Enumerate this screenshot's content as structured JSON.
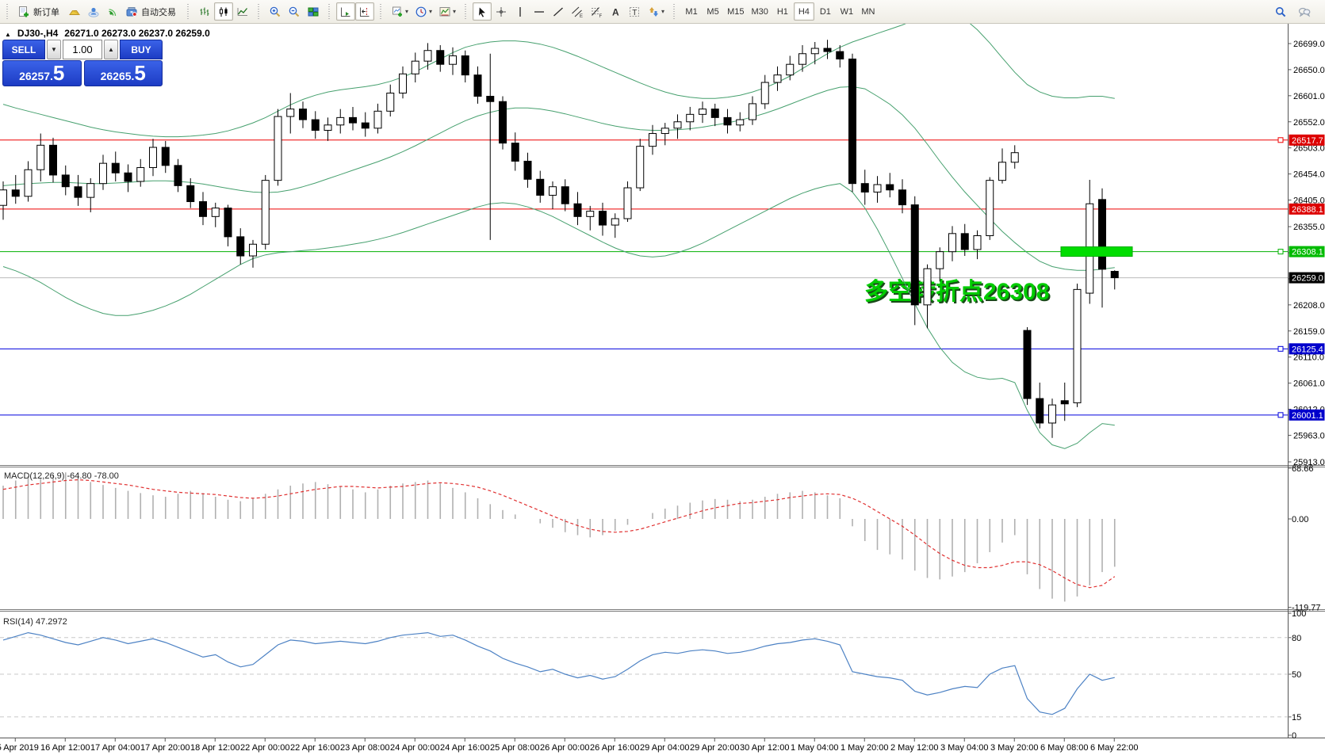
{
  "toolbar": {
    "new_order_label": "新订单",
    "autotrading_label": "自动交易",
    "timeframes": [
      "M1",
      "M5",
      "M15",
      "M30",
      "H1",
      "H4",
      "D1",
      "W1",
      "MN"
    ],
    "active_timeframe": "H4"
  },
  "quote_panel": {
    "sell_label": "SELL",
    "buy_label": "BUY",
    "volume": "1.00",
    "sell_main": "26257.",
    "sell_big": "5",
    "buy_main": "26265.",
    "buy_big": "5"
  },
  "chart": {
    "collapse_icon": "▲",
    "title": "DJ30-,H4",
    "ohlc": "26271.0 26273.0 26237.0 26259.0"
  },
  "chart_data": {
    "type": "candlestick",
    "symbol": "DJ30-",
    "timeframe": "H4",
    "open": 26271.0,
    "high": 26273.0,
    "low": 26237.0,
    "close": 26259.0,
    "price_axis_ticks": [
      "26699.0",
      "26650.0",
      "26601.0",
      "26552.0",
      "26503.0",
      "26454.0",
      "26405.0",
      "26355.0",
      "26306.0",
      "26257.0",
      "26208.0",
      "26159.0",
      "26110.0",
      "26061.0",
      "26012.0",
      "25963.0",
      "25913.0"
    ],
    "price_labels": [
      {
        "text": "26517.7",
        "price": 26517.7,
        "bg": "#dd0000",
        "fg": "#ffffff",
        "line": "#ee0000",
        "handle": true
      },
      {
        "text": "26388.1",
        "price": 26388.1,
        "bg": "#dd0000",
        "fg": "#ffffff",
        "line": "#ee0000",
        "handle": false
      },
      {
        "text": "26308.1",
        "price": 26308.1,
        "bg": "#00bb00",
        "fg": "#ffffff",
        "line": "#00b000",
        "handle": true
      },
      {
        "text": "26259.0",
        "price": 26259.0,
        "bg": "#000000",
        "fg": "#ffffff",
        "line": "#bbbbbb",
        "handle": false
      },
      {
        "text": "26125.4",
        "price": 26125.4,
        "bg": "#0000cc",
        "fg": "#ffffff",
        "line": "#0000dd",
        "handle": true
      },
      {
        "text": "26001.1",
        "price": 26001.1,
        "bg": "#0000cc",
        "fg": "#ffffff",
        "line": "#0000dd",
        "handle": true
      }
    ],
    "annotation": {
      "text": "多空转折点26308",
      "color": "#00cc00",
      "shadow": "#1a4a1a"
    },
    "green_zone": {
      "price": 26308.1,
      "color": "#00dd00"
    },
    "x_labels": [
      "15 Apr 2019",
      "16 Apr 12:00",
      "17 Apr 04:00",
      "17 Apr 20:00",
      "18 Apr 12:00",
      "22 Apr 00:00",
      "22 Apr 16:00",
      "23 Apr 08:00",
      "24 Apr 00:00",
      "24 Apr 16:00",
      "25 Apr 08:00",
      "26 Apr 00:00",
      "26 Apr 16:00",
      "29 Apr 04:00",
      "29 Apr 20:00",
      "30 Apr 12:00",
      "1 May 04:00",
      "1 May 20:00",
      "2 May 12:00",
      "3 May 04:00",
      "3 May 20:00",
      "6 May 08:00",
      "6 May 22:00"
    ],
    "candles": [
      [
        26395,
        26440,
        26368,
        26424
      ],
      [
        26424,
        26452,
        26398,
        26412
      ],
      [
        26412,
        26478,
        26402,
        26462
      ],
      [
        26462,
        26530,
        26440,
        26508
      ],
      [
        26508,
        26522,
        26438,
        26452
      ],
      [
        26452,
        26470,
        26414,
        26430
      ],
      [
        26430,
        26452,
        26394,
        26410
      ],
      [
        26410,
        26446,
        26382,
        26436
      ],
      [
        26436,
        26490,
        26424,
        26474
      ],
      [
        26474,
        26496,
        26440,
        26456
      ],
      [
        26456,
        26472,
        26420,
        26440
      ],
      [
        26440,
        26482,
        26430,
        26466
      ],
      [
        26466,
        26520,
        26450,
        26504
      ],
      [
        26504,
        26516,
        26456,
        26470
      ],
      [
        26470,
        26482,
        26420,
        26432
      ],
      [
        26432,
        26446,
        26390,
        26402
      ],
      [
        26402,
        26420,
        26358,
        26374
      ],
      [
        26374,
        26400,
        26354,
        26390
      ],
      [
        26390,
        26396,
        26318,
        26336
      ],
      [
        26336,
        26352,
        26284,
        26300
      ],
      [
        26300,
        26330,
        26278,
        26322
      ],
      [
        26322,
        26452,
        26312,
        26442
      ],
      [
        26442,
        26576,
        26432,
        26562
      ],
      [
        26562,
        26606,
        26530,
        26576
      ],
      [
        26576,
        26590,
        26540,
        26556
      ],
      [
        26556,
        26572,
        26520,
        26536
      ],
      [
        26536,
        26560,
        26516,
        26546
      ],
      [
        26546,
        26576,
        26530,
        26560
      ],
      [
        26560,
        26580,
        26536,
        26550
      ],
      [
        26550,
        26570,
        26524,
        26540
      ],
      [
        26540,
        26586,
        26530,
        26572
      ],
      [
        26572,
        26622,
        26562,
        26606
      ],
      [
        26606,
        26656,
        26596,
        26642
      ],
      [
        26642,
        26682,
        26626,
        26666
      ],
      [
        26666,
        26700,
        26650,
        26686
      ],
      [
        26686,
        26696,
        26646,
        26660
      ],
      [
        26660,
        26692,
        26640,
        26676
      ],
      [
        26676,
        26686,
        26626,
        26640
      ],
      [
        26640,
        26656,
        26586,
        26600
      ],
      [
        26600,
        26680,
        26330,
        26590
      ],
      [
        26590,
        26600,
        26500,
        26512
      ],
      [
        26512,
        26532,
        26460,
        26478
      ],
      [
        26478,
        26494,
        26428,
        26444
      ],
      [
        26444,
        26460,
        26400,
        26414
      ],
      [
        26414,
        26440,
        26388,
        26430
      ],
      [
        26430,
        26444,
        26384,
        26398
      ],
      [
        26398,
        26420,
        26358,
        26374
      ],
      [
        26374,
        26394,
        26348,
        26384
      ],
      [
        26384,
        26400,
        26338,
        26358
      ],
      [
        26358,
        26380,
        26334,
        26370
      ],
      [
        26370,
        26440,
        26364,
        26428
      ],
      [
        26428,
        26520,
        26422,
        26506
      ],
      [
        26506,
        26546,
        26490,
        26530
      ],
      [
        26530,
        26550,
        26508,
        26540
      ],
      [
        26540,
        26566,
        26520,
        26552
      ],
      [
        26552,
        26580,
        26536,
        26566
      ],
      [
        26566,
        26590,
        26550,
        26576
      ],
      [
        26576,
        26586,
        26544,
        26560
      ],
      [
        26560,
        26576,
        26530,
        26546
      ],
      [
        26546,
        26570,
        26534,
        26556
      ],
      [
        26556,
        26600,
        26546,
        26586
      ],
      [
        26586,
        26640,
        26576,
        26626
      ],
      [
        26626,
        26656,
        26610,
        26640
      ],
      [
        26640,
        26676,
        26630,
        26660
      ],
      [
        26660,
        26696,
        26646,
        26680
      ],
      [
        26680,
        26702,
        26660,
        26690
      ],
      [
        26690,
        26706,
        26670,
        26684
      ],
      [
        26684,
        26696,
        26654,
        26670
      ],
      [
        26670,
        26680,
        26420,
        26436
      ],
      [
        26436,
        26462,
        26396,
        26420
      ],
      [
        26420,
        26450,
        26400,
        26434
      ],
      [
        26434,
        26456,
        26410,
        26424
      ],
      [
        26424,
        26444,
        26380,
        26396
      ],
      [
        26396,
        26412,
        26170,
        26208
      ],
      [
        26208,
        26284,
        26164,
        26276
      ],
      [
        26276,
        26316,
        26252,
        26308
      ],
      [
        26308,
        26356,
        26290,
        26342
      ],
      [
        26342,
        26360,
        26300,
        26312
      ],
      [
        26312,
        26348,
        26294,
        26338
      ],
      [
        26338,
        26448,
        26330,
        26442
      ],
      [
        26442,
        26502,
        26436,
        26476
      ],
      [
        26476,
        26508,
        26464,
        26494
      ],
      [
        26160,
        26166,
        26020,
        26032
      ],
      [
        26032,
        26062,
        25976,
        25986
      ],
      [
        25986,
        26032,
        25958,
        26020
      ],
      [
        26028,
        26062,
        25990,
        26022
      ],
      [
        26024,
        26248,
        26016,
        26237
      ],
      [
        26230,
        26443,
        26210,
        26398
      ],
      [
        26406,
        26427,
        26203,
        26275
      ],
      [
        26271,
        26273,
        26237,
        26259
      ]
    ],
    "bollinger": {
      "color": "#46a06e",
      "upper": [
        26585,
        26578,
        26572,
        26566,
        26560,
        26554,
        26548,
        26542,
        26537,
        26533,
        26530,
        26527,
        26525,
        26524,
        26524,
        26525,
        26527,
        26530,
        26535,
        26542,
        26550,
        26560,
        26572,
        26584,
        26594,
        26602,
        26608,
        26612,
        26615,
        26618,
        26622,
        26628,
        26636,
        26646,
        26658,
        26670,
        26682,
        26692,
        26698,
        26702,
        26704,
        26704,
        26702,
        26698,
        26692,
        26684,
        26675,
        26665,
        26655,
        26645,
        26635,
        26625,
        26616,
        26608,
        26602,
        26598,
        26596,
        26596,
        26598,
        26602,
        26608,
        26616,
        26626,
        26638,
        26652,
        26666,
        26680,
        26692,
        26702,
        26710,
        26718,
        26726,
        26734,
        26744,
        26756,
        26768,
        26760,
        26745,
        26725,
        26700,
        26672,
        26645,
        26622,
        26608,
        26600,
        26597,
        26597,
        26600,
        26600,
        26596
      ],
      "middle": [
        26432,
        26434,
        26436,
        26437,
        26438,
        26438,
        26437,
        26436,
        26436,
        26437,
        26438,
        26440,
        26441,
        26441,
        26440,
        26438,
        26435,
        26431,
        26427,
        26423,
        26420,
        26419,
        26420,
        26424,
        26430,
        26437,
        26445,
        26453,
        26461,
        26469,
        26477,
        26486,
        26496,
        26507,
        26519,
        26531,
        26543,
        26554,
        26563,
        26570,
        26575,
        26578,
        26578,
        26576,
        26572,
        26567,
        26561,
        26555,
        26549,
        26544,
        26540,
        26537,
        26536,
        26536,
        26537,
        26539,
        26542,
        26546,
        26550,
        26555,
        26561,
        26568,
        26576,
        26585,
        26594,
        26603,
        26611,
        26617,
        26618,
        26614,
        26600,
        26585,
        26565,
        26540,
        26510,
        26478,
        26448,
        26420,
        26395,
        26370,
        26346,
        26325,
        26306,
        26290,
        26280,
        26275,
        26273,
        26273,
        26275,
        26278
      ],
      "lower": [
        26280,
        26272,
        26262,
        26250,
        26236,
        26222,
        26210,
        26200,
        26192,
        26188,
        26188,
        26192,
        26198,
        26206,
        26216,
        26228,
        26242,
        26256,
        26270,
        26284,
        26295,
        26302,
        26306,
        26308,
        26310,
        26312,
        26315,
        26318,
        26322,
        26326,
        26331,
        26337,
        26344,
        26352,
        26360,
        26368,
        26376,
        26384,
        26392,
        26398,
        26400,
        26398,
        26392,
        26384,
        26374,
        26362,
        26350,
        26338,
        26326,
        26315,
        26306,
        26300,
        26298,
        26300,
        26306,
        26314,
        26324,
        26336,
        26348,
        26360,
        26372,
        26384,
        26396,
        26408,
        26418,
        26426,
        26432,
        26436,
        26420,
        26390,
        26350,
        26305,
        26258,
        26210,
        26165,
        26128,
        26100,
        26082,
        26072,
        26068,
        26070,
        26062,
        26010,
        25968,
        25945,
        25938,
        25948,
        25968,
        25985,
        25982
      ]
    },
    "macd": {
      "label": "MACD(12,26,9)",
      "value": "-64.80",
      "signal_value": "-78.00",
      "axis": [
        "68.66",
        "0.00",
        "-119.77"
      ],
      "hist_color": "#b0b0b0",
      "signal_color": "#e03030",
      "hist": [
        45,
        52,
        58,
        55,
        60,
        63,
        57,
        50,
        46,
        42,
        38,
        35,
        32,
        30,
        34,
        38,
        35,
        30,
        26,
        24,
        28,
        34,
        40,
        45,
        48,
        50,
        47,
        44,
        40,
        36,
        40,
        45,
        48,
        50,
        52,
        48,
        42,
        36,
        28,
        20,
        12,
        6,
        0,
        -6,
        -12,
        -18,
        -22,
        -25,
        -22,
        -16,
        -8,
        0,
        8,
        14,
        18,
        22,
        25,
        27,
        26,
        24,
        26,
        30,
        34,
        36,
        38,
        36,
        32,
        28,
        -10,
        -30,
        -42,
        -48,
        -55,
        -70,
        -80,
        -82,
        -78,
        -72,
        -60,
        -45,
        -32,
        -22,
        -75,
        -95,
        -108,
        -112,
        -105,
        -90,
        -72,
        -64.8
      ],
      "signal": [
        40,
        43,
        46,
        48,
        50,
        52,
        53,
        52,
        50,
        48,
        46,
        43,
        40,
        38,
        36,
        35,
        34,
        33,
        31,
        29,
        28,
        29,
        31,
        34,
        37,
        40,
        42,
        44,
        44,
        43,
        42,
        43,
        44,
        46,
        48,
        49,
        48,
        46,
        43,
        38,
        32,
        25,
        18,
        11,
        4,
        -3,
        -9,
        -14,
        -17,
        -18,
        -17,
        -14,
        -9,
        -4,
        1,
        6,
        11,
        15,
        18,
        21,
        22,
        24,
        26,
        29,
        31,
        33,
        34,
        33,
        28,
        20,
        10,
        0,
        -10,
        -22,
        -35,
        -47,
        -56,
        -63,
        -66,
        -66,
        -63,
        -58,
        -58,
        -62,
        -70,
        -80,
        -89,
        -93,
        -90,
        -78
      ]
    },
    "rsi": {
      "label": "RSI(14)",
      "value": "47.2972",
      "axis": [
        "100",
        "80",
        "50",
        "15",
        "0"
      ],
      "levels": [
        80,
        50,
        15
      ],
      "line_color": "#4d82c4",
      "values": [
        78,
        81,
        84,
        82,
        79,
        76,
        74,
        77,
        80,
        78,
        75,
        77,
        79,
        76,
        72,
        68,
        64,
        66,
        60,
        56,
        58,
        66,
        74,
        78,
        77,
        75,
        76,
        77,
        76,
        75,
        77,
        80,
        82,
        83,
        84,
        81,
        82,
        78,
        73,
        69,
        63,
        59,
        56,
        52,
        54,
        50,
        47,
        49,
        46,
        48,
        54,
        61,
        66,
        68,
        67,
        69,
        70,
        69,
        67,
        68,
        70,
        73,
        75,
        76,
        78,
        79,
        77,
        74,
        52,
        50,
        48,
        47,
        45,
        36,
        33,
        35,
        38,
        40,
        39,
        50,
        55,
        57,
        30,
        19,
        17,
        22,
        38,
        50,
        45,
        47.3
      ]
    }
  }
}
